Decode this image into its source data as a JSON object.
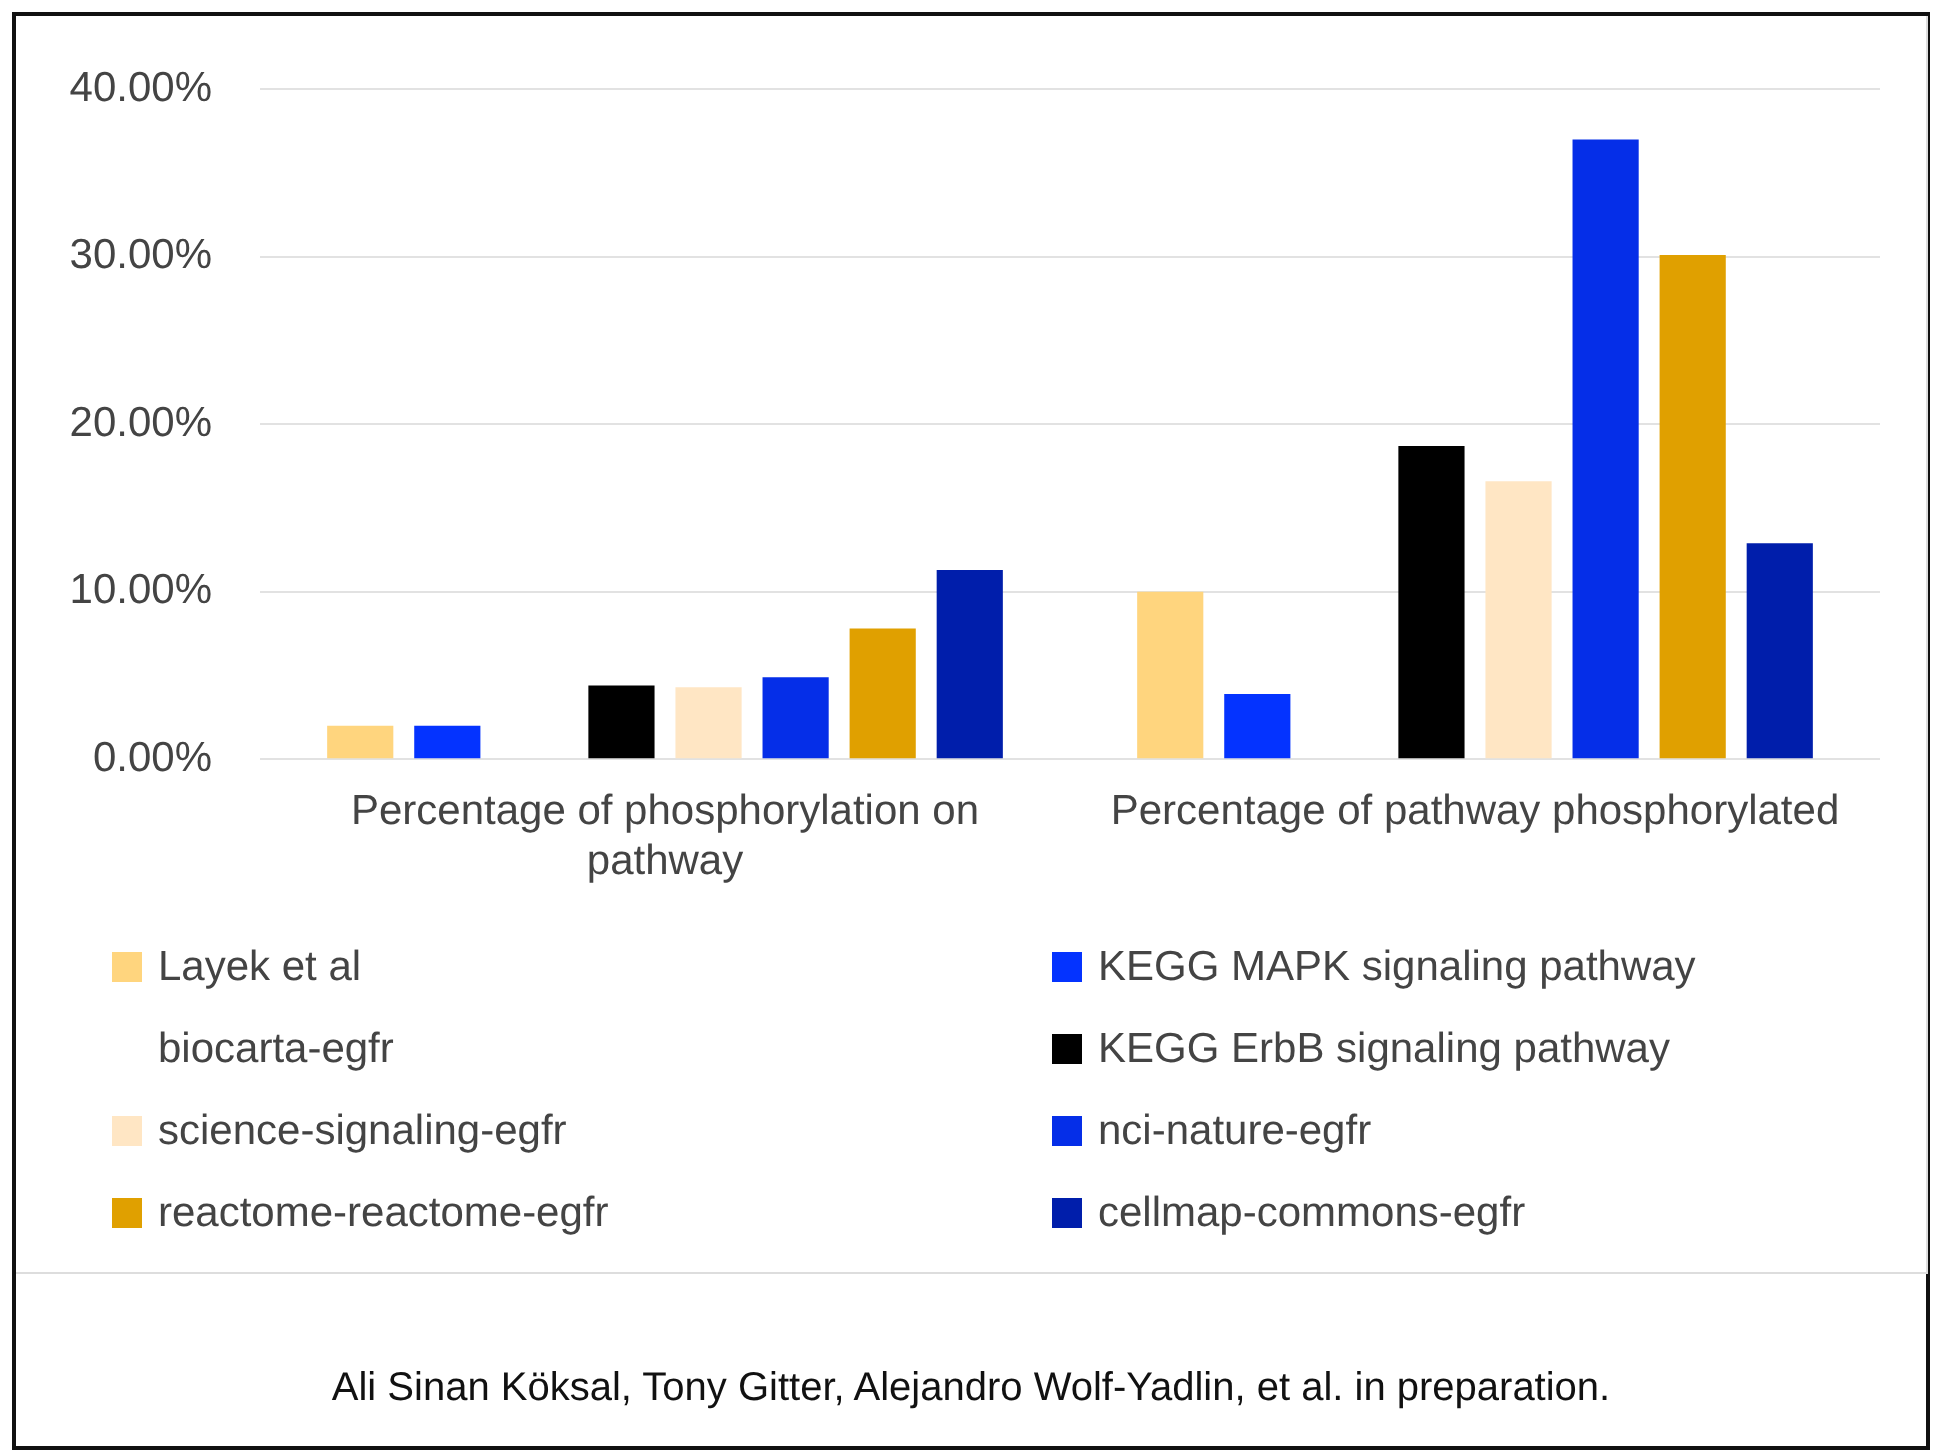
{
  "chart_data": {
    "type": "bar",
    "categories": [
      "Percentage of phosphorylation on pathway",
      "Percentage of pathway phosphorylated"
    ],
    "series": [
      {
        "name": "Layek et al",
        "color": "#ffd57e",
        "values": [
          2.0,
          10.0
        ]
      },
      {
        "name": "KEGG MAPK signaling pathway",
        "color": "#0433ff",
        "values": [
          2.0,
          3.9
        ]
      },
      {
        "name": "biocarta-egfr",
        "values": [
          null,
          null
        ]
      },
      {
        "name": "KEGG ErbB signaling pathway",
        "color": "#000000",
        "values": [
          4.4,
          18.7
        ]
      },
      {
        "name": "science-signaling-egfr",
        "color": "#ffe6c4",
        "values": [
          4.3,
          16.6
        ]
      },
      {
        "name": "nci-nature-egfr",
        "color": "#052ee8",
        "values": [
          4.9,
          37.0
        ]
      },
      {
        "name": "reactome-reactome-egfr",
        "color": "#e0a000",
        "values": [
          7.8,
          30.1
        ]
      },
      {
        "name": "cellmap-commons-egfr",
        "color": "#001eab",
        "values": [
          11.3,
          12.9
        ]
      }
    ],
    "ylim": [
      0,
      40
    ],
    "yticks": [
      {
        "value": 0,
        "label": "0.00%"
      },
      {
        "value": 10,
        "label": "10.00%"
      },
      {
        "value": 20,
        "label": "20.00%"
      },
      {
        "value": 30,
        "label": "30.00%"
      },
      {
        "value": 40,
        "label": "40.00%"
      }
    ],
    "grid": "y",
    "legend": "bottom",
    "annotations": [
      "Ali Sinan Köksal, Tony Gitter, Alejandro Wolf-Yadlin, et al. in preparation."
    ]
  }
}
